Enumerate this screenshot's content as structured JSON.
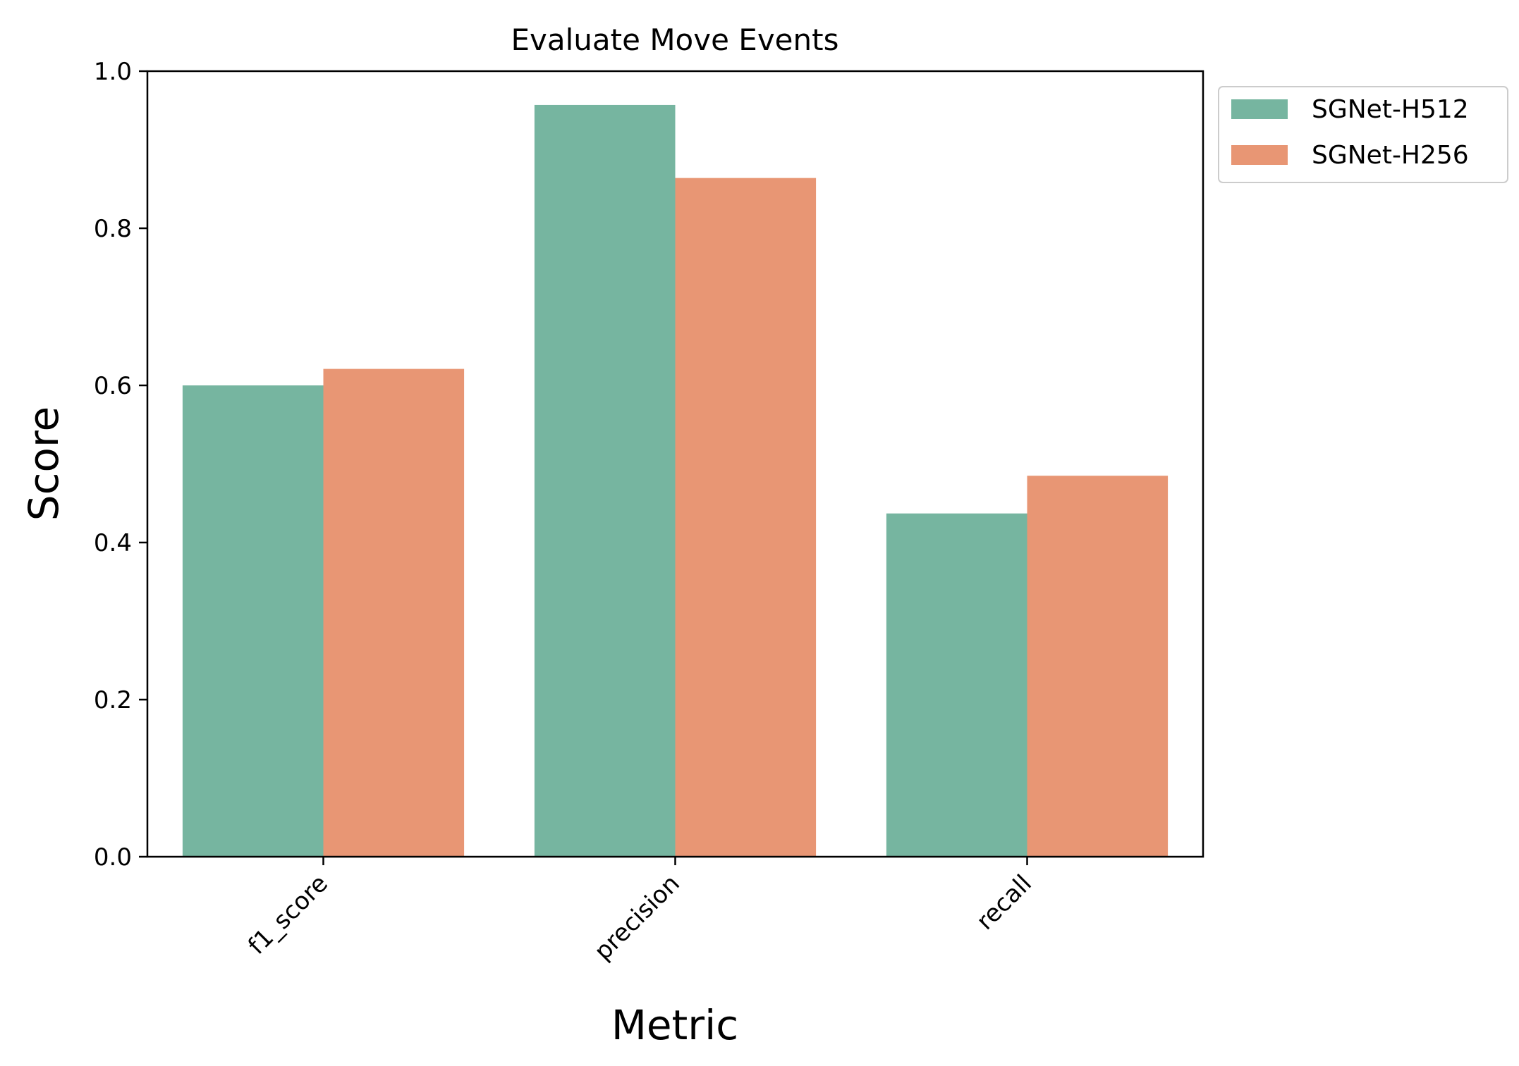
{
  "chart_data": {
    "type": "bar",
    "title": "Evaluate Move Events",
    "xlabel": "Metric",
    "ylabel": "Score",
    "categories": [
      "f1_score",
      "precision",
      "recall"
    ],
    "series": [
      {
        "name": "SGNet-H512",
        "color": "#76b5a0",
        "values": [
          0.6,
          0.957,
          0.437
        ]
      },
      {
        "name": "SGNet-H256",
        "color": "#e89674",
        "values": [
          0.621,
          0.864,
          0.485
        ]
      }
    ],
    "ylim": [
      0,
      1.0
    ],
    "yticks": [
      "0.0",
      "0.2",
      "0.4",
      "0.6",
      "0.8",
      "1.0"
    ],
    "grid": false,
    "legend_position": "outside-top-right"
  }
}
